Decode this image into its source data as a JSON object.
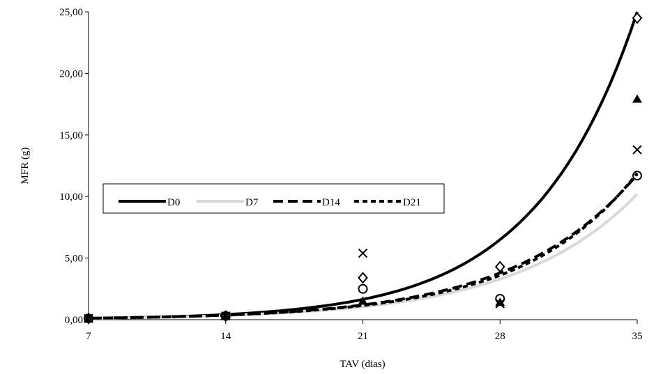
{
  "chart_data": {
    "type": "line",
    "xlabel": "TAV (dias)",
    "ylabel": "MFR (g)",
    "xlim": [
      7,
      35
    ],
    "ylim": [
      0,
      25
    ],
    "x_ticks": [
      "7",
      "14",
      "21",
      "28",
      "35"
    ],
    "x_tick_values": [
      7,
      14,
      21,
      28,
      35
    ],
    "y_ticks": [
      "0,00",
      "5,00",
      "10,00",
      "15,00",
      "20,00",
      "25,00"
    ],
    "y_tick_values": [
      0,
      5,
      10,
      15,
      20,
      25
    ],
    "legend_position": "center-left",
    "x": [
      7,
      14,
      21,
      28,
      35
    ],
    "series": [
      {
        "name": "D0",
        "style": "solid",
        "color": "#000000",
        "values": [
          0.1,
          0.42,
          1.65,
          6.5,
          25.0
        ]
      },
      {
        "name": "D7",
        "style": "solid",
        "color": "#d9d9d9",
        "values": [
          0.1,
          0.35,
          1.05,
          3.3,
          10.2
        ]
      },
      {
        "name": "D14",
        "style": "long-dash",
        "color": "#000000",
        "values": [
          0.12,
          0.38,
          1.2,
          3.8,
          11.8
        ]
      },
      {
        "name": "D21",
        "style": "short-dash",
        "color": "#000000",
        "values": [
          0.12,
          0.37,
          1.15,
          3.6,
          11.9
        ]
      }
    ],
    "observed": [
      {
        "marker": "diamond",
        "values": [
          0.1,
          0.3,
          3.4,
          4.3,
          24.5
        ]
      },
      {
        "marker": "triangle",
        "values": [
          0.1,
          0.3,
          1.5,
          1.4,
          17.9
        ]
      },
      {
        "marker": "x",
        "values": [
          0.1,
          0.3,
          5.4,
          1.3,
          13.8
        ]
      },
      {
        "marker": "circle",
        "values": [
          0.1,
          0.3,
          2.5,
          1.7,
          11.7
        ]
      }
    ]
  }
}
